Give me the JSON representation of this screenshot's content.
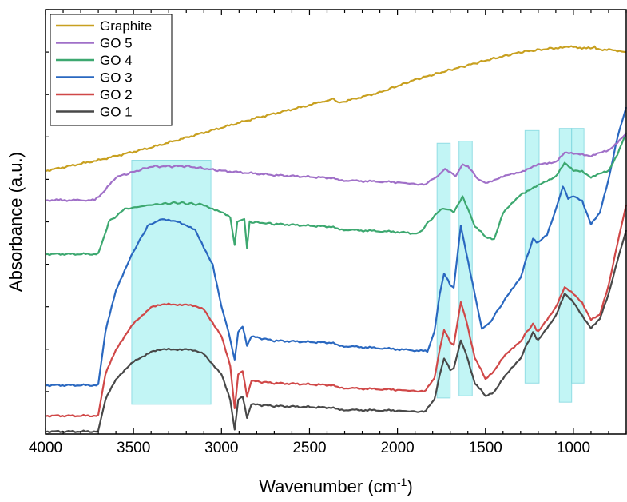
{
  "chart_data": {
    "type": "line",
    "xlabel": "Wavenumber (cm",
    "xlabel_sup": "-1",
    "xlabel_end": ")",
    "ylabel": "Absorbance (a.u.)",
    "x_reversed": true,
    "xlim": [
      4000,
      700
    ],
    "ylim": [
      0,
      1
    ],
    "y_ticks_labeled": false,
    "x_ticks": [
      "4000",
      "3500",
      "3000",
      "2500",
      "2000",
      "1500",
      "1000"
    ],
    "legend_position": "top-left",
    "series": [
      {
        "name": "Graphite",
        "color": "#c8a020",
        "points": [
          [
            4000,
            0.62
          ],
          [
            3700,
            0.645
          ],
          [
            3400,
            0.675
          ],
          [
            3100,
            0.71
          ],
          [
            2800,
            0.745
          ],
          [
            2500,
            0.775
          ],
          [
            2365,
            0.79
          ],
          [
            2340,
            0.78
          ],
          [
            2100,
            0.805
          ],
          [
            1900,
            0.835
          ],
          [
            1700,
            0.858
          ],
          [
            1500,
            0.88
          ],
          [
            1300,
            0.9
          ],
          [
            1100,
            0.91
          ],
          [
            1000,
            0.912
          ],
          [
            890,
            0.908
          ],
          [
            880,
            0.915
          ],
          [
            870,
            0.907
          ],
          [
            750,
            0.904
          ],
          [
            700,
            0.9
          ]
        ]
      },
      {
        "name": "GO 5",
        "color": "#a070c8",
        "points": [
          [
            4000,
            0.551
          ],
          [
            3720,
            0.551
          ],
          [
            3660,
            0.575
          ],
          [
            3600,
            0.605
          ],
          [
            3400,
            0.63
          ],
          [
            3200,
            0.631
          ],
          [
            3000,
            0.62
          ],
          [
            2700,
            0.61
          ],
          [
            2365,
            0.603
          ],
          [
            2340,
            0.598
          ],
          [
            2000,
            0.593
          ],
          [
            1850,
            0.587
          ],
          [
            1770,
            0.608
          ],
          [
            1730,
            0.624
          ],
          [
            1700,
            0.617
          ],
          [
            1670,
            0.608
          ],
          [
            1630,
            0.635
          ],
          [
            1600,
            0.63
          ],
          [
            1540,
            0.6
          ],
          [
            1500,
            0.592
          ],
          [
            1400,
            0.606
          ],
          [
            1300,
            0.618
          ],
          [
            1200,
            0.634
          ],
          [
            1100,
            0.642
          ],
          [
            1050,
            0.662
          ],
          [
            1000,
            0.66
          ],
          [
            950,
            0.66
          ],
          [
            900,
            0.655
          ],
          [
            800,
            0.668
          ],
          [
            700,
            0.708
          ]
        ]
      },
      {
        "name": "GO 4",
        "color": "#3da870",
        "points": [
          [
            4000,
            0.424
          ],
          [
            3700,
            0.424
          ],
          [
            3640,
            0.5
          ],
          [
            3550,
            0.53
          ],
          [
            3400,
            0.54
          ],
          [
            3250,
            0.545
          ],
          [
            3100,
            0.54
          ],
          [
            3000,
            0.522
          ],
          [
            2950,
            0.51
          ],
          [
            2925,
            0.445
          ],
          [
            2910,
            0.5
          ],
          [
            2870,
            0.505
          ],
          [
            2855,
            0.44
          ],
          [
            2840,
            0.5
          ],
          [
            2700,
            0.495
          ],
          [
            2365,
            0.488
          ],
          [
            2340,
            0.482
          ],
          [
            2000,
            0.476
          ],
          [
            1880,
            0.472
          ],
          [
            1800,
            0.51
          ],
          [
            1740,
            0.533
          ],
          [
            1700,
            0.528
          ],
          [
            1680,
            0.522
          ],
          [
            1630,
            0.56
          ],
          [
            1600,
            0.53
          ],
          [
            1560,
            0.49
          ],
          [
            1500,
            0.465
          ],
          [
            1450,
            0.46
          ],
          [
            1400,
            0.52
          ],
          [
            1300,
            0.565
          ],
          [
            1250,
            0.575
          ],
          [
            1200,
            0.585
          ],
          [
            1100,
            0.608
          ],
          [
            1050,
            0.638
          ],
          [
            1000,
            0.62
          ],
          [
            950,
            0.62
          ],
          [
            900,
            0.605
          ],
          [
            800,
            0.62
          ],
          [
            750,
            0.66
          ],
          [
            700,
            0.71
          ]
        ]
      },
      {
        "name": "GO 3",
        "color": "#2a68c0",
        "points": [
          [
            4000,
            0.115
          ],
          [
            3700,
            0.115
          ],
          [
            3660,
            0.24
          ],
          [
            3600,
            0.34
          ],
          [
            3500,
            0.43
          ],
          [
            3420,
            0.49
          ],
          [
            3350,
            0.505
          ],
          [
            3250,
            0.502
          ],
          [
            3150,
            0.48
          ],
          [
            3050,
            0.4
          ],
          [
            3000,
            0.3
          ],
          [
            2960,
            0.24
          ],
          [
            2925,
            0.175
          ],
          [
            2905,
            0.24
          ],
          [
            2880,
            0.255
          ],
          [
            2855,
            0.21
          ],
          [
            2830,
            0.23
          ],
          [
            2700,
            0.22
          ],
          [
            2365,
            0.215
          ],
          [
            2340,
            0.208
          ],
          [
            2000,
            0.2
          ],
          [
            1830,
            0.195
          ],
          [
            1790,
            0.24
          ],
          [
            1760,
            0.33
          ],
          [
            1735,
            0.38
          ],
          [
            1700,
            0.35
          ],
          [
            1680,
            0.345
          ],
          [
            1640,
            0.49
          ],
          [
            1610,
            0.43
          ],
          [
            1560,
            0.33
          ],
          [
            1520,
            0.25
          ],
          [
            1480,
            0.26
          ],
          [
            1400,
            0.31
          ],
          [
            1300,
            0.37
          ],
          [
            1230,
            0.46
          ],
          [
            1200,
            0.45
          ],
          [
            1150,
            0.47
          ],
          [
            1100,
            0.53
          ],
          [
            1060,
            0.585
          ],
          [
            1030,
            0.555
          ],
          [
            1000,
            0.56
          ],
          [
            950,
            0.55
          ],
          [
            900,
            0.495
          ],
          [
            850,
            0.52
          ],
          [
            800,
            0.6
          ],
          [
            750,
            0.7
          ],
          [
            700,
            0.77
          ]
        ]
      },
      {
        "name": "GO 2",
        "color": "#d04848",
        "points": [
          [
            4000,
            0.043
          ],
          [
            3700,
            0.043
          ],
          [
            3660,
            0.14
          ],
          [
            3600,
            0.2
          ],
          [
            3500,
            0.26
          ],
          [
            3400,
            0.3
          ],
          [
            3300,
            0.306
          ],
          [
            3200,
            0.305
          ],
          [
            3100,
            0.295
          ],
          [
            3000,
            0.23
          ],
          [
            2950,
            0.16
          ],
          [
            2925,
            0.06
          ],
          [
            2905,
            0.14
          ],
          [
            2880,
            0.15
          ],
          [
            2855,
            0.09
          ],
          [
            2830,
            0.125
          ],
          [
            2700,
            0.12
          ],
          [
            2365,
            0.115
          ],
          [
            2340,
            0.109
          ],
          [
            2000,
            0.104
          ],
          [
            1850,
            0.1
          ],
          [
            1790,
            0.13
          ],
          [
            1760,
            0.2
          ],
          [
            1735,
            0.247
          ],
          [
            1700,
            0.215
          ],
          [
            1680,
            0.21
          ],
          [
            1640,
            0.31
          ],
          [
            1610,
            0.27
          ],
          [
            1560,
            0.18
          ],
          [
            1500,
            0.13
          ],
          [
            1450,
            0.15
          ],
          [
            1400,
            0.18
          ],
          [
            1300,
            0.22
          ],
          [
            1230,
            0.26
          ],
          [
            1200,
            0.24
          ],
          [
            1100,
            0.3
          ],
          [
            1050,
            0.345
          ],
          [
            1000,
            0.33
          ],
          [
            950,
            0.31
          ],
          [
            900,
            0.27
          ],
          [
            850,
            0.28
          ],
          [
            800,
            0.35
          ],
          [
            750,
            0.45
          ],
          [
            700,
            0.54
          ]
        ]
      },
      {
        "name": "GO 1",
        "color": "#484848",
        "points": [
          [
            4000,
            0.006
          ],
          [
            3700,
            0.006
          ],
          [
            3660,
            0.08
          ],
          [
            3600,
            0.13
          ],
          [
            3500,
            0.17
          ],
          [
            3400,
            0.195
          ],
          [
            3300,
            0.2
          ],
          [
            3200,
            0.2
          ],
          [
            3100,
            0.19
          ],
          [
            3000,
            0.14
          ],
          [
            2950,
            0.08
          ],
          [
            2925,
            0.01
          ],
          [
            2905,
            0.08
          ],
          [
            2880,
            0.09
          ],
          [
            2855,
            0.04
          ],
          [
            2830,
            0.07
          ],
          [
            2700,
            0.066
          ],
          [
            2365,
            0.062
          ],
          [
            2340,
            0.057
          ],
          [
            2000,
            0.055
          ],
          [
            1850,
            0.052
          ],
          [
            1790,
            0.08
          ],
          [
            1760,
            0.14
          ],
          [
            1735,
            0.18
          ],
          [
            1700,
            0.15
          ],
          [
            1680,
            0.155
          ],
          [
            1640,
            0.22
          ],
          [
            1610,
            0.19
          ],
          [
            1560,
            0.12
          ],
          [
            1500,
            0.09
          ],
          [
            1450,
            0.1
          ],
          [
            1400,
            0.13
          ],
          [
            1300,
            0.18
          ],
          [
            1230,
            0.24
          ],
          [
            1200,
            0.22
          ],
          [
            1100,
            0.28
          ],
          [
            1050,
            0.33
          ],
          [
            1000,
            0.31
          ],
          [
            950,
            0.28
          ],
          [
            900,
            0.25
          ],
          [
            850,
            0.27
          ],
          [
            800,
            0.33
          ],
          [
            750,
            0.41
          ],
          [
            700,
            0.48
          ]
        ]
      }
    ],
    "highlight_bands": [
      {
        "x_range": [
          3510,
          3060
        ],
        "y_range": [
          0.07,
          0.645
        ]
      },
      {
        "x_range": [
          1775,
          1700
        ],
        "y_range": [
          0.085,
          0.685
        ]
      },
      {
        "x_range": [
          1650,
          1575
        ],
        "y_range": [
          0.09,
          0.69
        ]
      },
      {
        "x_range": [
          1275,
          1195
        ],
        "y_range": [
          0.12,
          0.715
        ]
      },
      {
        "x_range": [
          1080,
          1010
        ],
        "y_range": [
          0.075,
          0.72
        ]
      },
      {
        "x_range": [
          1010,
          940
        ],
        "y_range": [
          0.12,
          0.72
        ]
      }
    ],
    "band_color": "#b8f4f4",
    "band_stroke": "#80d8e0"
  }
}
